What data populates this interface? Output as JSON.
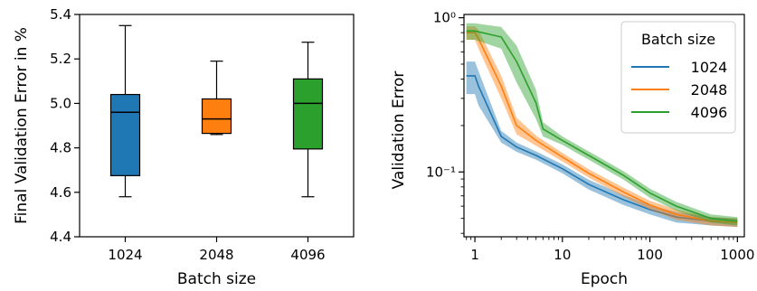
{
  "chart_data": [
    {
      "type": "box",
      "xlabel": "Batch size",
      "ylabel": "Final Validation Error in %",
      "ylim": [
        4.4,
        5.4
      ],
      "yticks": [
        "4.4",
        "4.6",
        "4.8",
        "5.0",
        "5.2",
        "5.4"
      ],
      "categories": [
        "1024",
        "2048",
        "4096"
      ],
      "boxes": [
        {
          "name": "1024",
          "color": "#1f77b4",
          "min": 4.58,
          "q1": 4.675,
          "median": 4.96,
          "q3": 5.04,
          "max": 5.35
        },
        {
          "name": "2048",
          "color": "#ff7f0e",
          "min": 4.86,
          "q1": 4.865,
          "median": 4.93,
          "q3": 5.02,
          "max": 5.19
        },
        {
          "name": "4096",
          "color": "#2ca02c",
          "min": 4.58,
          "q1": 4.795,
          "median": 5.0,
          "q3": 5.11,
          "max": 5.275
        }
      ]
    },
    {
      "type": "line",
      "xlabel": "Epoch",
      "ylabel": "Validation Error",
      "xscale": "log",
      "yscale": "log",
      "xlim": [
        0.75,
        1200
      ],
      "ylim": [
        0.038,
        1.05
      ],
      "xticks": [
        "1",
        "10",
        "100",
        "1000"
      ],
      "yticks": [
        "10⁰",
        "10⁻¹"
      ],
      "legend": {
        "title": "Batch size",
        "position": "top-right"
      },
      "series": [
        {
          "name": "1024",
          "color": "#1f77b4",
          "x": [
            0.8,
            1,
            1.1,
            2,
            3,
            5,
            10,
            20,
            50,
            100,
            200,
            500,
            1000
          ],
          "y": [
            0.42,
            0.42,
            0.36,
            0.17,
            0.145,
            0.128,
            0.105,
            0.083,
            0.066,
            0.057,
            0.051,
            0.048,
            0.047
          ],
          "spread": [
            0.1,
            0.1,
            0.09,
            0.015,
            0.01,
            0.008,
            0.007,
            0.006,
            0.005,
            0.004,
            0.004,
            0.003,
            0.003
          ]
        },
        {
          "name": "2048",
          "color": "#ff7f0e",
          "x": [
            0.8,
            1,
            1.1,
            2,
            3,
            5,
            10,
            20,
            50,
            100,
            200,
            500,
            1000
          ],
          "y": [
            0.8,
            0.8,
            0.73,
            0.36,
            0.2,
            0.16,
            0.125,
            0.098,
            0.074,
            0.061,
            0.053,
            0.048,
            0.047
          ],
          "spread": [
            0.08,
            0.08,
            0.1,
            0.06,
            0.025,
            0.012,
            0.008,
            0.006,
            0.005,
            0.004,
            0.004,
            0.003,
            0.003
          ]
        },
        {
          "name": "4096",
          "color": "#2ca02c",
          "x": [
            0.8,
            1,
            2,
            3,
            5,
            6,
            10,
            20,
            50,
            100,
            200,
            500,
            1000
          ],
          "y": [
            0.82,
            0.82,
            0.75,
            0.52,
            0.28,
            0.19,
            0.16,
            0.128,
            0.095,
            0.073,
            0.06,
            0.05,
            0.048
          ],
          "spread": [
            0.1,
            0.1,
            0.12,
            0.14,
            0.06,
            0.02,
            0.01,
            0.008,
            0.006,
            0.005,
            0.004,
            0.003,
            0.003
          ]
        }
      ]
    }
  ]
}
